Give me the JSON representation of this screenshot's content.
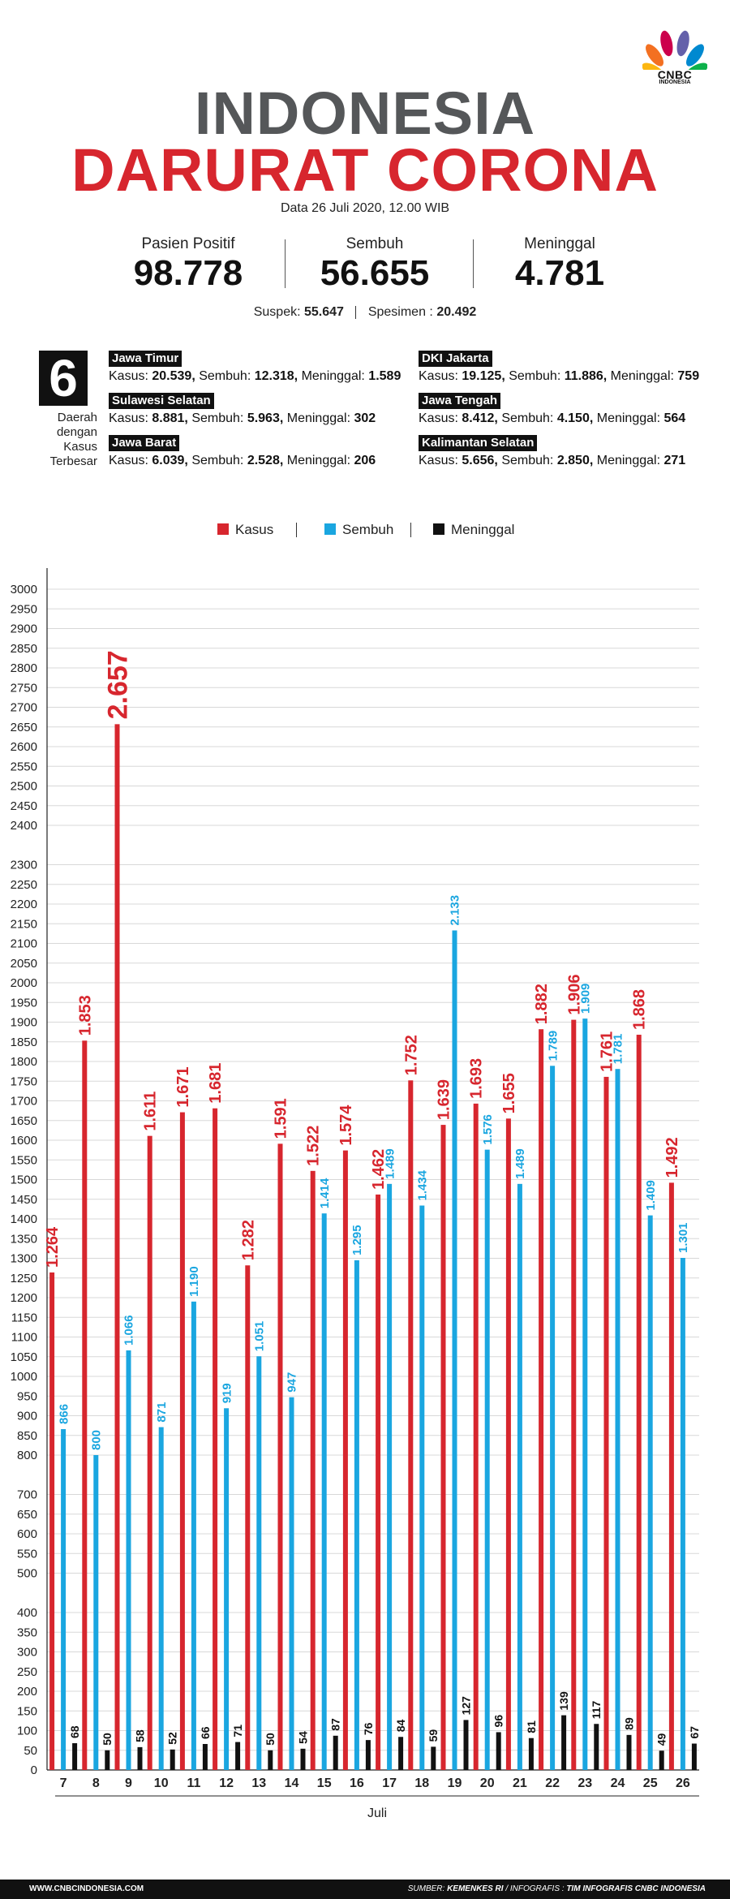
{
  "brand": {
    "logo": "CNBC",
    "logo_sub": "INDONESIA"
  },
  "header": {
    "title_line1": "INDONESIA",
    "title_line2": "DARURAT CORONA",
    "date": "Data 26 Juli 2020, 12.00 WIB"
  },
  "stats": [
    {
      "label": "Pasien Positif",
      "value": "98.778"
    },
    {
      "label": "Sembuh",
      "value": "56.655"
    },
    {
      "label": "Meninggal",
      "value": "4.781"
    }
  ],
  "extra": {
    "suspek_label": "Suspek:",
    "suspek_value": "55.647",
    "spesimen_label": "Spesimen :",
    "spesimen_value": "20.492"
  },
  "regions": {
    "count": "6",
    "caption": [
      "Daerah",
      "dengan",
      "Kasus",
      "Terbesar"
    ],
    "items": [
      {
        "name": "Jawa Timur",
        "kasus": "20.539,",
        "sembuh": "12.318,",
        "meninggal": "1.589"
      },
      {
        "name": "Sulawesi Selatan",
        "kasus": "8.881,",
        "sembuh": "5.963,",
        "meninggal": "302"
      },
      {
        "name": "Jawa Barat",
        "kasus": "6.039,",
        "sembuh": "2.528,",
        "meninggal": "206"
      },
      {
        "name": "DKI Jakarta",
        "kasus": "19.125,",
        "sembuh": "11.886,",
        "meninggal": "759"
      },
      {
        "name": "Jawa Tengah",
        "kasus": "8.412,",
        "sembuh": "4.150,",
        "meninggal": "564"
      },
      {
        "name": "Kalimantan Selatan",
        "kasus": "5.656,",
        "sembuh": "2.850,",
        "meninggal": "271"
      }
    ],
    "labels": {
      "kasus": "Kasus:",
      "sembuh": "Sembuh:",
      "meninggal": "Meninggal:"
    }
  },
  "legend": [
    {
      "name": "Kasus",
      "color": "#d7262e"
    },
    {
      "name": "Sembuh",
      "color": "#1aa6e0"
    },
    {
      "name": "Meninggal",
      "color": "#111111"
    }
  ],
  "chart_data": {
    "type": "bar",
    "xlabel": "Juli",
    "ylabel": "",
    "ylim": [
      0,
      3000
    ],
    "yticks": [
      0,
      50,
      100,
      150,
      200,
      250,
      300,
      350,
      400,
      500,
      550,
      600,
      650,
      700,
      800,
      850,
      900,
      950,
      1000,
      1050,
      1100,
      1150,
      1200,
      1250,
      1300,
      1350,
      1400,
      1450,
      1500,
      1550,
      1600,
      1650,
      1700,
      1750,
      1800,
      1850,
      1900,
      1950,
      2000,
      2050,
      2100,
      2150,
      2200,
      2250,
      2300,
      2400,
      2450,
      2500,
      2550,
      2600,
      2650,
      2700,
      2750,
      2800,
      2850,
      2900,
      2950,
      3000
    ],
    "categories": [
      "7",
      "8",
      "9",
      "10",
      "11",
      "12",
      "13",
      "14",
      "15",
      "16",
      "17",
      "18",
      "19",
      "20",
      "21",
      "22",
      "23",
      "24",
      "25",
      "26"
    ],
    "series": [
      {
        "name": "Kasus",
        "color": "#d7262e",
        "values": [
          1264,
          1853,
          2657,
          1611,
          1671,
          1681,
          1282,
          1591,
          1522,
          1574,
          1462,
          1752,
          1639,
          1693,
          1655,
          1882,
          1906,
          1761,
          1868,
          1492
        ],
        "labels": [
          "1.264",
          "1.853",
          "2.657",
          "1.611",
          "1.671",
          "1.681",
          "1.282",
          "1.591",
          "1.522",
          "1.574",
          "1.462",
          "1.752",
          "1.639",
          "1.693",
          "1.655",
          "1.882",
          "1.906",
          "1.761",
          "1.868",
          "1.492"
        ]
      },
      {
        "name": "Sembuh",
        "color": "#1aa6e0",
        "values": [
          866,
          800,
          1066,
          871,
          1190,
          919,
          1051,
          947,
          1414,
          1295,
          1489,
          1434,
          2133,
          1576,
          1489,
          1789,
          1909,
          1781,
          1409,
          1301
        ],
        "labels": [
          "866",
          "800",
          "1.066",
          "871",
          "1.190",
          "919",
          "1.051",
          "947",
          "1.414",
          "1.295",
          "1.489",
          "1.434",
          "2.133",
          "1.576",
          "1.489",
          "1.789",
          "1.909",
          "1.781",
          "1.409",
          "1.301"
        ]
      },
      {
        "name": "Meninggal",
        "color": "#111111",
        "values": [
          68,
          50,
          58,
          52,
          66,
          71,
          50,
          54,
          87,
          76,
          84,
          59,
          127,
          96,
          81,
          139,
          117,
          89,
          49,
          67
        ],
        "labels": [
          "68",
          "50",
          "58",
          "52",
          "66",
          "71",
          "50",
          "54",
          "87",
          "76",
          "84",
          "59",
          "127",
          "96",
          "81",
          "139",
          "117",
          "89",
          "49",
          "67"
        ]
      }
    ]
  },
  "footer": {
    "website": "WWW.CNBCINDONESIA.COM",
    "source_label": "SUMBER:",
    "source_value": "KEMENKES RI",
    "credit_label": "/ INFOGRAFIS :",
    "credit_value": "TIM INFOGRAFIS CNBC INDONESIA"
  }
}
